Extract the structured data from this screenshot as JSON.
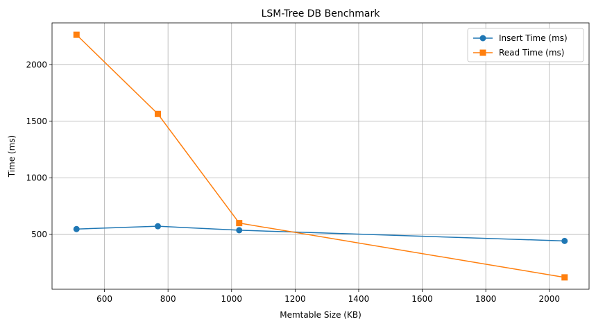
{
  "chart_data": {
    "type": "line",
    "title": "LSM-Tree DB Benchmark",
    "xlabel": "Memtable Size (KB)",
    "ylabel": "Time (ms)",
    "xlim": [
      435,
      2125
    ],
    "ylim": [
      15,
      2370
    ],
    "xticks": [
      600,
      800,
      1000,
      1200,
      1400,
      1600,
      1800,
      2000
    ],
    "yticks": [
      500,
      1000,
      1500,
      2000
    ],
    "grid": true,
    "legend_position": "top-right",
    "x": [
      512,
      768,
      1024,
      2048
    ],
    "series": [
      {
        "name": "Insert Time (ms)",
        "values": [
          547,
          572,
          537,
          442
        ],
        "color": "#1f77b4",
        "marker": "circle"
      },
      {
        "name": "Read Time (ms)",
        "values": [
          2265,
          1565,
          600,
          120
        ],
        "color": "#ff7f0e",
        "marker": "square"
      }
    ]
  }
}
